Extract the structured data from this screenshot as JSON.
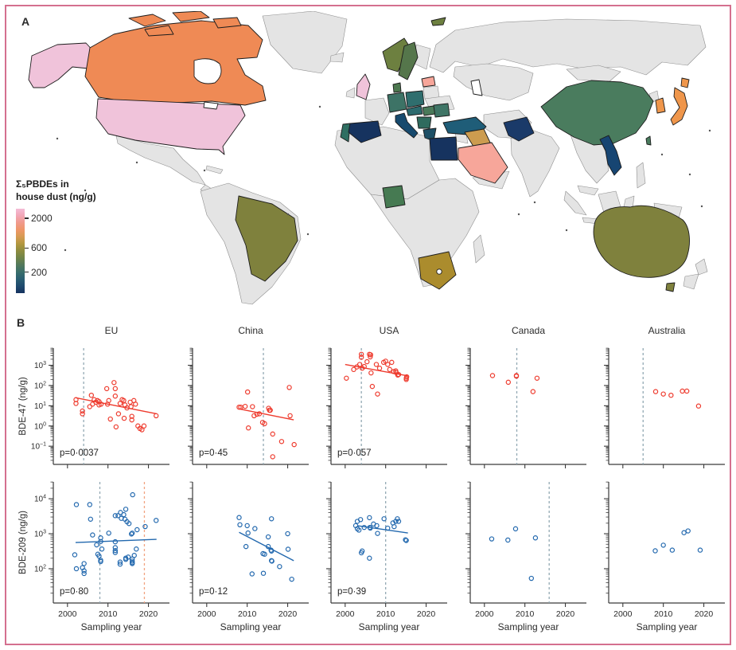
{
  "figure": {
    "panel_a_label": "A",
    "panel_b_label": "B",
    "border_color": "#d4708f"
  },
  "map": {
    "legend": {
      "title_line1": "Σ₅PBDEs in",
      "title_line2": "house dust (ng/g)",
      "ticks": [
        {
          "label": "2000",
          "pos": 0.11
        },
        {
          "label": "600",
          "pos": 0.465
        },
        {
          "label": "200",
          "pos": 0.75
        }
      ],
      "gradient": [
        "#f4bcd6",
        "#f2a6b6",
        "#f09a8c",
        "#ee9668",
        "#d69b52",
        "#b2973f",
        "#8d8c3f",
        "#6f8449",
        "#52795c",
        "#3a6f6b",
        "#2a5e72",
        "#1f4a6e",
        "#16325f"
      ]
    },
    "countries": {
      "alaska": "#f0c3da",
      "usa": "#f0c3da",
      "uk": "#f0c3da",
      "canada": "#ef8a55",
      "japan": "#ef964b",
      "south_korea": "#ef964b",
      "saudi_arabia": "#f7a69a",
      "latvia": "#f7a69a",
      "iraq": "#cc9c4f",
      "south_africa": "#ab8c2d",
      "brazil": "#7f813d",
      "australia": "#7f813d",
      "tasmania": "#7f813d",
      "norway": "#6d8040",
      "svalbard": "#6d8040",
      "sweden": "#55764b",
      "denmark": "#4d7850",
      "hungary": "#4a7a5a",
      "germany": "#3d7366",
      "poland": "#2f6e6e",
      "austria_czech": "#2c6a6e",
      "romania": "#3f7566",
      "balkans": "#2f6b5e",
      "nigeria": "#467a52",
      "china": "#4a7c5e",
      "portugal": "#2f6f62",
      "turkey": "#1f5d78",
      "greece": "#1d4f66",
      "italy": "#174a6e",
      "vietnam": "#174572",
      "pakistan": "#1a3a69",
      "spain": "#16335f",
      "egypt": "#16335f",
      "no_data": "#e4e4e4",
      "lake": "#ffffff"
    }
  },
  "chart_data": {
    "type": "scatter",
    "columns": [
      "EU",
      "China",
      "USA",
      "Canada",
      "Australia"
    ],
    "xlabel": "Sampling year",
    "xticks": [
      2000,
      2010,
      2020
    ],
    "xlim": [
      1996.5,
      2025.2
    ],
    "vline_colors": {
      "grey": "#93a9b4",
      "salmon": "#f2a381"
    },
    "rows": [
      {
        "label": "BDE-47 (ng/g)",
        "color": "#ee3b2e",
        "ylim_log": [
          -1.9,
          3.85
        ],
        "scale": "log"
      },
      {
        "label": "BDE-209 (ng/g)",
        "color": "#2268ae",
        "ylim_log": [
          1.02,
          4.48
        ],
        "scale": "log"
      }
    ],
    "panels": [
      {
        "row": 0,
        "col": 0,
        "region": "EU",
        "p": "p=0·0037",
        "vlines": [
          {
            "year": 2004,
            "color": "grey"
          }
        ],
        "trend": {
          "x": [
            2002,
            2022
          ],
          "y": [
            25,
            4
          ]
        },
        "points": [
          [
            2002.1,
            20
          ],
          [
            2002.1,
            13
          ],
          [
            2003.7,
            5.5
          ],
          [
            2003.7,
            4
          ],
          [
            2005.5,
            9
          ],
          [
            2005.9,
            33
          ],
          [
            2006.2,
            12
          ],
          [
            2006.6,
            20
          ],
          [
            2007,
            15
          ],
          [
            2007.4,
            18
          ],
          [
            2007.8,
            16
          ],
          [
            2007.8,
            11
          ],
          [
            2008.3,
            12
          ],
          [
            2009.7,
            70
          ],
          [
            2009.9,
            12
          ],
          [
            2010.2,
            18
          ],
          [
            2010.6,
            2.2
          ],
          [
            2011.5,
            140
          ],
          [
            2011.8,
            70
          ],
          [
            2011.8,
            30
          ],
          [
            2012,
            0.9
          ],
          [
            2012.6,
            4
          ],
          [
            2013,
            13
          ],
          [
            2013.5,
            20
          ],
          [
            2013.9,
            18
          ],
          [
            2014,
            2.4
          ],
          [
            2014.2,
            11
          ],
          [
            2014.7,
            7.8
          ],
          [
            2015.5,
            15
          ],
          [
            2015.7,
            9
          ],
          [
            2015.9,
            3
          ],
          [
            2015.9,
            2
          ],
          [
            2016.4,
            18
          ],
          [
            2016.8,
            12
          ],
          [
            2017.4,
            1
          ],
          [
            2017.9,
            0.75
          ],
          [
            2018.4,
            0.65
          ],
          [
            2018.9,
            1
          ],
          [
            2021.9,
            3.2
          ]
        ]
      },
      {
        "row": 0,
        "col": 1,
        "region": "China",
        "p": "p=0·45",
        "vlines": [
          {
            "year": 2014,
            "color": "grey"
          }
        ],
        "trend": {
          "x": [
            2008,
            2021.5
          ],
          "y": [
            7,
            2
          ]
        },
        "points": [
          [
            2008,
            8.5
          ],
          [
            2008.4,
            8.5
          ],
          [
            2009.5,
            9.3
          ],
          [
            2010.1,
            48
          ],
          [
            2010.3,
            0.8
          ],
          [
            2011.3,
            9
          ],
          [
            2011.7,
            3.2
          ],
          [
            2012.4,
            3.8
          ],
          [
            2013,
            4
          ],
          [
            2013.8,
            1.5
          ],
          [
            2014.3,
            1.3
          ],
          [
            2015.3,
            7.5
          ],
          [
            2015.5,
            6
          ],
          [
            2015.7,
            6
          ],
          [
            2016.3,
            0.4
          ],
          [
            2016.3,
            0.03
          ],
          [
            2018.5,
            0.17
          ],
          [
            2020.4,
            80
          ],
          [
            2020.6,
            3.2
          ],
          [
            2021.6,
            0.12
          ]
        ]
      },
      {
        "row": 0,
        "col": 2,
        "region": "USA",
        "p": "p=0·057",
        "vlines": [
          {
            "year": 2004,
            "color": "grey"
          }
        ],
        "trend": {
          "x": [
            2000,
            2015.5
          ],
          "y": [
            1100,
            300
          ]
        },
        "points": [
          [
            2000.3,
            230
          ],
          [
            2002.1,
            620
          ],
          [
            2002.9,
            830
          ],
          [
            2003.6,
            1100
          ],
          [
            2004,
            3500
          ],
          [
            2004,
            2500
          ],
          [
            2004.2,
            720
          ],
          [
            2004.7,
            870
          ],
          [
            2005.4,
            1500
          ],
          [
            2006,
            3500
          ],
          [
            2006.2,
            2600
          ],
          [
            2006.3,
            3300
          ],
          [
            2006.4,
            420
          ],
          [
            2006.7,
            90
          ],
          [
            2007.7,
            1100
          ],
          [
            2008,
            38
          ],
          [
            2008.5,
            720
          ],
          [
            2009.5,
            1400
          ],
          [
            2010,
            1600
          ],
          [
            2010.5,
            1100
          ],
          [
            2011,
            620
          ],
          [
            2011.5,
            1400
          ],
          [
            2012,
            490
          ],
          [
            2012.5,
            530
          ],
          [
            2012.6,
            440
          ],
          [
            2013,
            330
          ],
          [
            2013.2,
            350
          ],
          [
            2015.1,
            230
          ],
          [
            2015.1,
            200
          ],
          [
            2015.2,
            270
          ]
        ]
      },
      {
        "row": 0,
        "col": 3,
        "region": "Canada",
        "p": null,
        "vlines": [
          {
            "year": 2008,
            "color": "grey"
          }
        ],
        "trend": null,
        "points": [
          [
            2002,
            310
          ],
          [
            2005.9,
            145
          ],
          [
            2007.9,
            310
          ],
          [
            2007.9,
            290
          ],
          [
            2012,
            50
          ],
          [
            2013,
            230
          ]
        ]
      },
      {
        "row": 0,
        "col": 4,
        "region": "Australia",
        "p": null,
        "vlines": [
          {
            "year": 2005,
            "color": "grey"
          }
        ],
        "trend": null,
        "points": [
          [
            2008.1,
            50
          ],
          [
            2010,
            38
          ],
          [
            2011.9,
            33
          ],
          [
            2014.7,
            53
          ],
          [
            2015.8,
            53
          ],
          [
            2018.7,
            9.7
          ]
        ]
      },
      {
        "row": 1,
        "col": 0,
        "region": "EU",
        "p": "p=0·80",
        "vlines": [
          {
            "year": 2008,
            "color": "grey"
          },
          {
            "year": 2019,
            "color": "salmon"
          }
        ],
        "trend": {
          "x": [
            2002,
            2022
          ],
          "y": [
            560,
            690
          ]
        },
        "points": [
          [
            2001.8,
            250
          ],
          [
            2002.2,
            6800
          ],
          [
            2002.2,
            100
          ],
          [
            2003.7,
            107
          ],
          [
            2004.1,
            140
          ],
          [
            2004.1,
            87
          ],
          [
            2004.1,
            73
          ],
          [
            2005.5,
            6800
          ],
          [
            2005.7,
            2600
          ],
          [
            2006.2,
            920
          ],
          [
            2007.2,
            480
          ],
          [
            2007.5,
            260
          ],
          [
            2007.8,
            230
          ],
          [
            2008.2,
            760
          ],
          [
            2008.2,
            600
          ],
          [
            2008.2,
            175
          ],
          [
            2008.2,
            160
          ],
          [
            2008.5,
            365
          ],
          [
            2010.2,
            1040
          ],
          [
            2011.8,
            3280
          ],
          [
            2011.8,
            590
          ],
          [
            2011.8,
            400
          ],
          [
            2011.8,
            330
          ],
          [
            2011.8,
            290
          ],
          [
            2012.5,
            3280
          ],
          [
            2013,
            135
          ],
          [
            2013,
            155
          ],
          [
            2013.1,
            4050
          ],
          [
            2013.3,
            2750
          ],
          [
            2013.9,
            3500
          ],
          [
            2014.2,
            2600
          ],
          [
            2014.4,
            5000
          ],
          [
            2014.4,
            200
          ],
          [
            2014.4,
            185
          ],
          [
            2014.7,
            2200
          ],
          [
            2015,
            215
          ],
          [
            2015.2,
            1950
          ],
          [
            2015.8,
            980
          ],
          [
            2016,
            1040
          ],
          [
            2016,
            190
          ],
          [
            2016,
            165
          ],
          [
            2016,
            150
          ],
          [
            2016,
            140
          ],
          [
            2016.1,
            13000
          ],
          [
            2016.5,
            240
          ],
          [
            2017,
            365
          ],
          [
            2017.2,
            1300
          ],
          [
            2019.2,
            1600
          ],
          [
            2021.9,
            2400
          ]
        ]
      },
      {
        "row": 1,
        "col": 1,
        "region": "China",
        "p": "p=0·12",
        "vlines": [],
        "trend": {
          "x": [
            2008,
            2021.5
          ],
          "y": [
            1100,
            170
          ]
        },
        "points": [
          [
            2008,
            2900
          ],
          [
            2008.2,
            1800
          ],
          [
            2009.7,
            430
          ],
          [
            2010,
            1700
          ],
          [
            2010.2,
            1050
          ],
          [
            2011.2,
            71
          ],
          [
            2011.9,
            1400
          ],
          [
            2013.9,
            270
          ],
          [
            2014,
            74
          ],
          [
            2014.3,
            260
          ],
          [
            2015.2,
            810
          ],
          [
            2015.2,
            430
          ],
          [
            2015.9,
            340
          ],
          [
            2016,
            2670
          ],
          [
            2016,
            320
          ],
          [
            2016,
            170
          ],
          [
            2016.1,
            165
          ],
          [
            2018,
            115
          ],
          [
            2020,
            1000
          ],
          [
            2020.1,
            360
          ],
          [
            2021,
            50
          ]
        ]
      },
      {
        "row": 1,
        "col": 2,
        "region": "USA",
        "p": "p=0·39",
        "vlines": [
          {
            "year": 2010,
            "color": "grey"
          }
        ],
        "trend": {
          "x": [
            2003,
            2015.5
          ],
          "y": [
            1700,
            1050
          ]
        },
        "points": [
          [
            2002.6,
            1700
          ],
          [
            2003,
            2250
          ],
          [
            2003,
            1390
          ],
          [
            2003.4,
            1270
          ],
          [
            2003.8,
            2530
          ],
          [
            2004,
            285
          ],
          [
            2004.2,
            320
          ],
          [
            2004.7,
            1510
          ],
          [
            2006,
            2870
          ],
          [
            2006,
            200
          ],
          [
            2006.1,
            1510
          ],
          [
            2006.2,
            1450
          ],
          [
            2007,
            1890
          ],
          [
            2007.8,
            1700
          ],
          [
            2008,
            1020
          ],
          [
            2009.6,
            2670
          ],
          [
            2010.5,
            1440
          ],
          [
            2011.8,
            2030
          ],
          [
            2012.1,
            1590
          ],
          [
            2012.5,
            2250
          ],
          [
            2012.9,
            2670
          ],
          [
            2013.2,
            2250
          ],
          [
            2014.9,
            670
          ],
          [
            2015.1,
            640
          ]
        ]
      },
      {
        "row": 1,
        "col": 3,
        "region": "Canada",
        "p": null,
        "vlines": [
          {
            "year": 2016,
            "color": "grey"
          }
        ],
        "trend": null,
        "points": [
          [
            2001.8,
            710
          ],
          [
            2005.8,
            660
          ],
          [
            2007.7,
            1380
          ],
          [
            2011.6,
            53
          ],
          [
            2012.6,
            760
          ]
        ]
      },
      {
        "row": 1,
        "col": 4,
        "region": "Australia",
        "p": null,
        "vlines": [],
        "trend": null,
        "points": [
          [
            2008,
            325
          ],
          [
            2010,
            470
          ],
          [
            2012.2,
            340
          ],
          [
            2015.1,
            1070
          ],
          [
            2016.1,
            1200
          ],
          [
            2019.1,
            340
          ]
        ]
      }
    ]
  }
}
